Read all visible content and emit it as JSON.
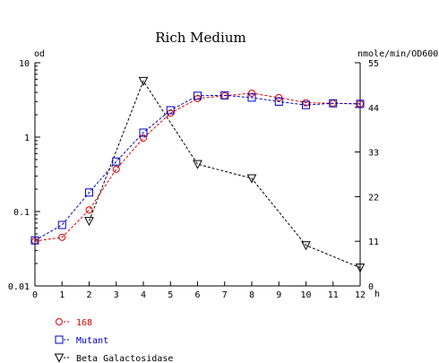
{
  "chart_data": {
    "type": "line",
    "title": "Rich Medium",
    "xlabel": "h",
    "ylabel_left": "od",
    "ylabel_right": "nmole/min/OD600",
    "xlim": [
      0,
      12
    ],
    "ylim_left": [
      0.01,
      10
    ],
    "yscale_left": "log",
    "ylim_right": [
      0,
      55
    ],
    "x_ticks": [
      0,
      1,
      2,
      3,
      4,
      5,
      6,
      7,
      8,
      9,
      10,
      11,
      12
    ],
    "x_tick_labels": [
      "0",
      "1",
      "2",
      "3",
      "4",
      "5",
      "6",
      "7",
      "8",
      "9",
      "10",
      "11",
      "12"
    ],
    "y_left_ticks": [
      10,
      1,
      0.1,
      0.01
    ],
    "y_left_tick_labels": [
      "10",
      "1",
      "0.1",
      "0.01"
    ],
    "y_right_ticks": [
      0,
      11,
      22,
      33,
      44,
      55
    ],
    "y_right_tick_labels": [
      "0",
      "11",
      "22",
      "33",
      "44",
      "55"
    ],
    "grid": false,
    "legend_position": "bottom-left",
    "series": [
      {
        "name": "168",
        "axis": "left",
        "marker": "circle",
        "color": "#dd0000",
        "x": [
          0,
          1,
          2,
          3,
          4,
          5,
          6,
          7,
          8,
          9,
          10,
          11,
          12
        ],
        "y": [
          0.04,
          0.045,
          0.105,
          0.37,
          0.97,
          2.1,
          3.3,
          3.6,
          3.9,
          3.4,
          2.9,
          2.85,
          2.8
        ]
      },
      {
        "name": "Mutant",
        "axis": "left",
        "marker": "square",
        "color": "#0000cc",
        "x": [
          0,
          1,
          2,
          3,
          4,
          5,
          6,
          7,
          8,
          9,
          10,
          11,
          12
        ],
        "y": [
          0.041,
          0.066,
          0.18,
          0.47,
          1.15,
          2.3,
          3.6,
          3.65,
          3.4,
          3.0,
          2.7,
          2.85,
          2.8
        ]
      },
      {
        "name": "Beta Galactosidase",
        "axis": "right",
        "marker": "triangle-down",
        "color": "#000000",
        "x": [
          2,
          4,
          6,
          8,
          10,
          12
        ],
        "y": [
          16,
          50.5,
          30,
          26.5,
          10,
          4.5
        ]
      }
    ]
  }
}
